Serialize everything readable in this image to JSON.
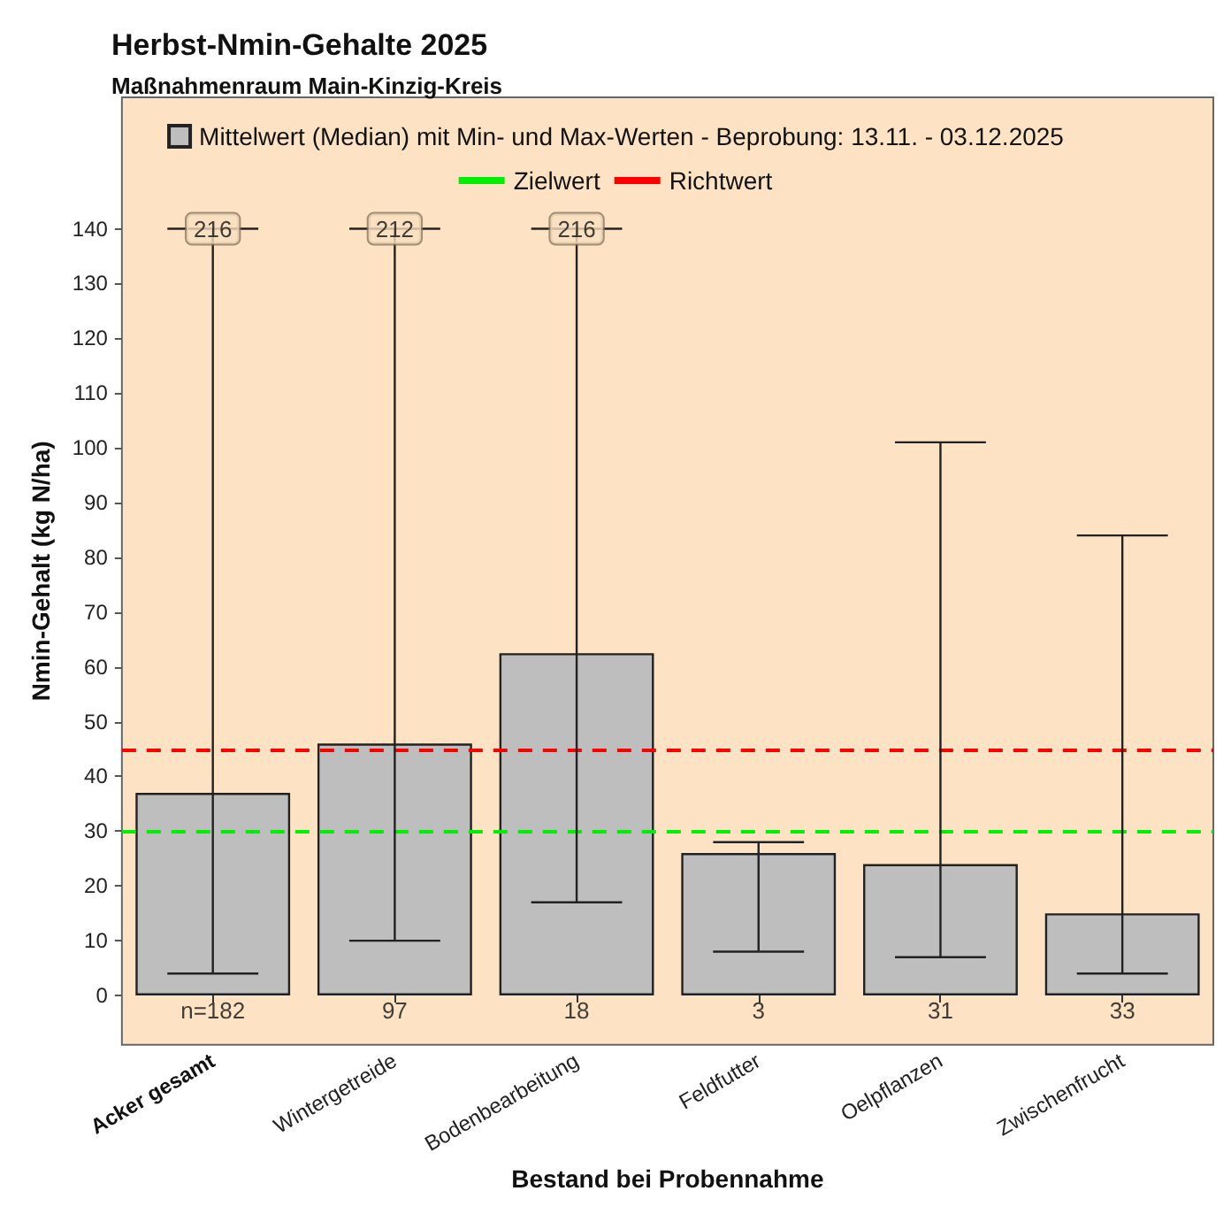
{
  "chart_data": {
    "type": "bar",
    "title": "Herbst-Nmin-Gehalte 2025",
    "subtitle": "Maßnahmenraum Main-Kinzig-Kreis",
    "xlabel": "Bestand bei Probennahme",
    "ylabel": "Nmin-Gehalt (kg N/ha)",
    "categories": [
      "Acker gesamt",
      "Wintergetreide",
      "Bodenbearbeitung",
      "Feldfutter",
      "Oelpflanzen",
      "Zwischenfrucht"
    ],
    "series": [
      {
        "name": "Mittelwert (Median) mit Min- und Max-Werten - Beprobung: 13.11. - 03.12.2025",
        "color": "#bebebe",
        "values": [
          37,
          46,
          62.5,
          26,
          24,
          15
        ],
        "errors": [
          [
            4,
            140
          ],
          [
            10,
            140
          ],
          [
            17,
            140
          ],
          [
            8,
            28
          ],
          [
            7,
            101
          ],
          [
            4,
            84
          ]
        ]
      }
    ],
    "ylim": [
      -9,
      164
    ],
    "yticks": [
      0,
      10,
      20,
      30,
      40,
      50,
      60,
      70,
      80,
      90,
      100,
      110,
      120,
      130,
      140
    ],
    "ref_lines": [
      {
        "axis": "y",
        "value": 30,
        "label": "Zielwert",
        "color": "#00ee00",
        "line_style": "dashed"
      },
      {
        "axis": "y",
        "value": 45,
        "label": "Richtwert",
        "color": "#ff0000",
        "line_style": "dashed"
      }
    ],
    "annotations": [
      "216",
      "212",
      "216",
      {
        "text": "n=182",
        "x": "Acker gesamt",
        "y": 0
      },
      {
        "text": "97",
        "x": "Wintergetreide",
        "y": 0
      },
      {
        "text": "18",
        "x": "Bodenbearbeitung",
        "y": 0
      },
      {
        "text": "3",
        "x": "Feldfutter",
        "y": 0
      },
      {
        "text": "31",
        "x": "Oelpflanzen",
        "y": 0
      },
      {
        "text": "33",
        "x": "Zwischenfrucht",
        "y": 0
      }
    ],
    "legend": "top",
    "grid": false
  }
}
